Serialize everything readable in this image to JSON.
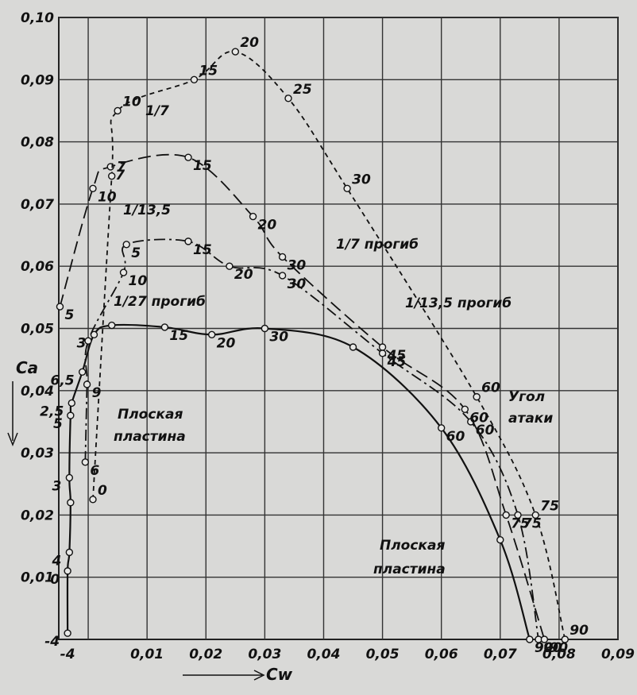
{
  "chart_data": {
    "type": "line",
    "xlabel": "Cw",
    "ylabel": "Ca",
    "xlim": [
      -0.005,
      0.09
    ],
    "ylim": [
      0,
      0.1
    ],
    "x_ticks": [
      "-4",
      "0,01",
      "0,02",
      "0,03",
      "0,04",
      "0,05",
      "0,06",
      "0,07",
      "0,08",
      "0,09"
    ],
    "y_ticks": [
      "0,01",
      "0,02",
      "0,03",
      "0,04",
      "0,05",
      "0,06",
      "0,07",
      "0,08",
      "0,09",
      "0,10"
    ],
    "grid": true,
    "series": [
      {
        "name": "Плоская пластина",
        "style": "solid",
        "points": [
          {
            "x": -0.0035,
            "y": 0.001,
            "label": "-4"
          },
          {
            "x": -0.0035,
            "y": 0.011,
            "label": "0"
          },
          {
            "x": -0.0032,
            "y": 0.014,
            "label": "4"
          },
          {
            "x": -0.003,
            "y": 0.022,
            "label": ""
          },
          {
            "x": -0.0032,
            "y": 0.026,
            "label": "3"
          },
          {
            "x": -0.003,
            "y": 0.036,
            "label": "5"
          },
          {
            "x": -0.0028,
            "y": 0.038,
            "label": "2,5"
          },
          {
            "x": -0.001,
            "y": 0.043,
            "label": "6,5"
          },
          {
            "x": 0.001,
            "y": 0.049,
            "label": "3"
          },
          {
            "x": 0.004,
            "y": 0.0505,
            "label": ""
          },
          {
            "x": 0.013,
            "y": 0.0502,
            "label": "15"
          },
          {
            "x": 0.021,
            "y": 0.049,
            "label": "20"
          },
          {
            "x": 0.03,
            "y": 0.05,
            "label": "30"
          },
          {
            "x": 0.045,
            "y": 0.047,
            "label": ""
          },
          {
            "x": 0.06,
            "y": 0.034,
            "label": "60"
          },
          {
            "x": 0.07,
            "y": 0.016,
            "label": ""
          },
          {
            "x": 0.075,
            "y": 0.0,
            "label": "90"
          }
        ]
      },
      {
        "name": "1/27 прогиб",
        "style": "dash-dot",
        "points": [
          {
            "x": -0.0005,
            "y": 0.0285,
            "label": "6"
          },
          {
            "x": -0.0002,
            "y": 0.041,
            "label": "9"
          },
          {
            "x": 0.0,
            "y": 0.048,
            "label": ""
          },
          {
            "x": 0.006,
            "y": 0.059,
            "label": "10"
          },
          {
            "x": 0.0065,
            "y": 0.0635,
            "label": "5"
          },
          {
            "x": 0.017,
            "y": 0.064,
            "label": "15"
          },
          {
            "x": 0.024,
            "y": 0.06,
            "label": "20"
          },
          {
            "x": 0.033,
            "y": 0.0585,
            "label": "30"
          },
          {
            "x": 0.05,
            "y": 0.046,
            "label": "45"
          },
          {
            "x": 0.065,
            "y": 0.035,
            "label": "60"
          },
          {
            "x": 0.073,
            "y": 0.02,
            "label": "75"
          },
          {
            "x": 0.0765,
            "y": 0.0,
            "label": "90"
          }
        ]
      },
      {
        "name": "1/13,5 прогиб",
        "style": "long-dash",
        "points": [
          {
            "x": -0.0048,
            "y": 0.0535,
            "label": "5"
          },
          {
            "x": 0.0008,
            "y": 0.0725,
            "label": "10"
          },
          {
            "x": 0.0038,
            "y": 0.076,
            "label": "7"
          },
          {
            "x": 0.017,
            "y": 0.0775,
            "label": "15"
          },
          {
            "x": 0.028,
            "y": 0.068,
            "label": "20"
          },
          {
            "x": 0.033,
            "y": 0.0615,
            "label": "30"
          },
          {
            "x": 0.05,
            "y": 0.047,
            "label": "45"
          },
          {
            "x": 0.064,
            "y": 0.037,
            "label": "60"
          },
          {
            "x": 0.071,
            "y": 0.02,
            "label": "75"
          },
          {
            "x": 0.0775,
            "y": 0.0,
            "label": "90"
          }
        ]
      },
      {
        "name": "1/7 прогиб",
        "style": "short-dash",
        "points": [
          {
            "x": 0.0008,
            "y": 0.0225,
            "label": "0"
          },
          {
            "x": 0.004,
            "y": 0.0745,
            "label": "7"
          },
          {
            "x": 0.005,
            "y": 0.085,
            "label": "10"
          },
          {
            "x": 0.018,
            "y": 0.09,
            "label": "15"
          },
          {
            "x": 0.025,
            "y": 0.0945,
            "label": "20"
          },
          {
            "x": 0.034,
            "y": 0.087,
            "label": "25"
          },
          {
            "x": 0.044,
            "y": 0.0725,
            "label": "30"
          },
          {
            "x": 0.066,
            "y": 0.039,
            "label": "60"
          },
          {
            "x": 0.076,
            "y": 0.02,
            "label": "75"
          },
          {
            "x": 0.081,
            "y": 0.0,
            "label": "90"
          }
        ]
      }
    ],
    "annotations": {
      "plate_top": "Плоская",
      "plate_bottom": "пластина",
      "plate2_top": "Плоская",
      "plate2_bottom": "пластина",
      "frac_27": "1/27 прогиб",
      "frac_13_left": "1/13,5",
      "frac_13_right": "1/13,5 прогиб",
      "frac_7_left": "1/7",
      "frac_7_right": "1/7 прогиб",
      "angle_top": "Угол",
      "angle_bottom": "атаки"
    }
  }
}
